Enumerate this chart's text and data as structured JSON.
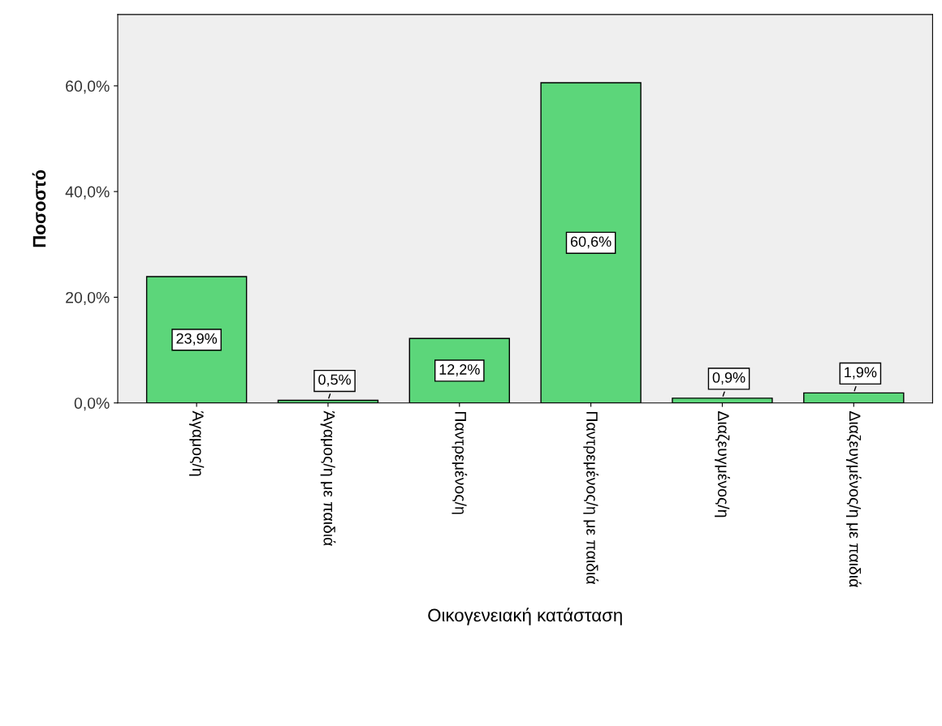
{
  "chart_data": {
    "type": "bar",
    "xlabel": "Οικογενειακή κατάσταση",
    "ylabel": "Ποσοστό",
    "categories": [
      "Άγαμος/η",
      "Άγαμος/η με παιδιά",
      "Παντρεμένος/η",
      "Παντρεμένος/η με παιδιά",
      "Διαζευγμένος/η",
      "Διαζευγμένος/η με παιδιά"
    ],
    "values": [
      23.9,
      0.5,
      12.2,
      60.6,
      0.9,
      1.9
    ],
    "value_labels": [
      "23,9%",
      "0,5%",
      "12,2%",
      "60,6%",
      "0,9%",
      "1,9%"
    ],
    "color": "#5cd67a",
    "ylim": [
      0,
      73.5
    ],
    "yticks": [
      {
        "value": 0,
        "label": "0,0%"
      },
      {
        "value": 20,
        "label": "20,0%"
      },
      {
        "value": 40,
        "label": "40,0%"
      },
      {
        "value": 60,
        "label": "60,0%"
      }
    ],
    "grid": false
  }
}
